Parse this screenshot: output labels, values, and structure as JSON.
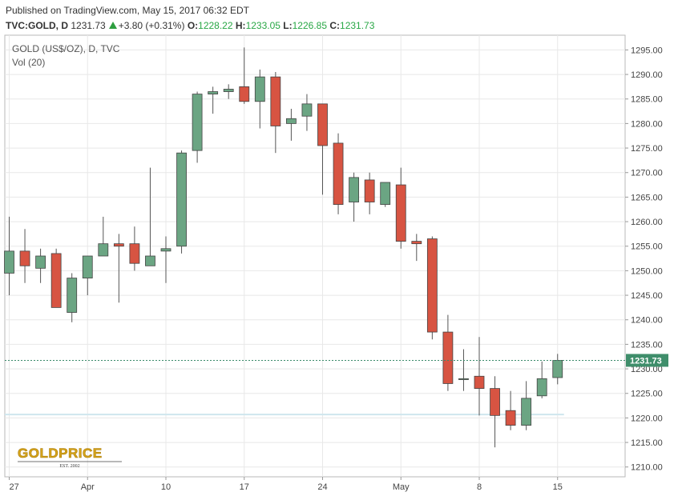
{
  "header": {
    "published": "Published on TradingView.com, May 15, 2017 06:32 EDT",
    "symbol": "TVC:GOLD, D",
    "last": "1231.73",
    "change": "+3.80 (+0.31%)",
    "o_label": "O:",
    "o_value": "1228.22",
    "h_label": "H:",
    "h_value": "1233.05",
    "l_label": "L:",
    "l_value": "1226.85",
    "c_label": "C:",
    "c_value": "1231.73"
  },
  "colors": {
    "up": "#6ba583",
    "down": "#d75442",
    "wick": "#555555",
    "grid": "#e8e8e8",
    "price_line": "#3a8a6a",
    "price_badge": "#3f8e6b",
    "accent_green": "#28a745"
  },
  "chart_data": {
    "type": "candlestick",
    "title": "GOLD (US$/OZ), D, TVC",
    "subtitle": "Vol (20)",
    "ylim": [
      1208,
      1298
    ],
    "y_ticks": [
      1295,
      1290,
      1285,
      1280,
      1275,
      1270,
      1265,
      1260,
      1255,
      1250,
      1245,
      1240,
      1235,
      1230,
      1225,
      1220,
      1215,
      1210
    ],
    "y_tick_labels": [
      "1295.00",
      "1290.00",
      "1285.00",
      "1280.00",
      "1275.00",
      "1270.00",
      "1265.00",
      "1260.00",
      "1255.00",
      "1250.00",
      "1245.00",
      "1240.00",
      "1235.00",
      "1230.00",
      "1225.00",
      "1220.00",
      "1215.00",
      "1210.00"
    ],
    "x_labels": [
      "27",
      "Apr",
      "10",
      "17",
      "24",
      "May",
      "8",
      "15"
    ],
    "x_label_bar_index": [
      0,
      5,
      10,
      15,
      20,
      25,
      30,
      35
    ],
    "current_price": 1231.73,
    "current_price_label": "1231.73",
    "candles": [
      {
        "o": 1249.5,
        "h": 1261,
        "l": 1245,
        "c": 1254
      },
      {
        "o": 1254,
        "h": 1258.5,
        "l": 1247.5,
        "c": 1251
      },
      {
        "o": 1250.5,
        "h": 1254.5,
        "l": 1247.5,
        "c": 1253
      },
      {
        "o": 1253.5,
        "h": 1254.5,
        "l": 1242.5,
        "c": 1242.5
      },
      {
        "o": 1241.5,
        "h": 1249.5,
        "l": 1239.5,
        "c": 1248.5
      },
      {
        "o": 1248.5,
        "h": 1252.5,
        "l": 1245,
        "c": 1253
      },
      {
        "o": 1253,
        "h": 1261,
        "l": 1253,
        "c": 1255.5
      },
      {
        "o": 1255.5,
        "h": 1257.5,
        "l": 1243.5,
        "c": 1255
      },
      {
        "o": 1255.5,
        "h": 1259,
        "l": 1250,
        "c": 1251.5
      },
      {
        "o": 1251,
        "h": 1271,
        "l": 1251,
        "c": 1253
      },
      {
        "o": 1254,
        "h": 1257,
        "l": 1247.5,
        "c": 1254.5
      },
      {
        "o": 1255,
        "h": 1274.5,
        "l": 1253.5,
        "c": 1274
      },
      {
        "o": 1274.5,
        "h": 1286.5,
        "l": 1272,
        "c": 1286
      },
      {
        "o": 1286,
        "h": 1287.5,
        "l": 1282,
        "c": 1286.5
      },
      {
        "o": 1286.5,
        "h": 1288,
        "l": 1285,
        "c": 1287
      },
      {
        "o": 1287.5,
        "h": 1295.5,
        "l": 1284,
        "c": 1284.5
      },
      {
        "o": 1284.5,
        "h": 1291,
        "l": 1279,
        "c": 1289.5
      },
      {
        "o": 1289.5,
        "h": 1290.5,
        "l": 1274,
        "c": 1279.5
      },
      {
        "o": 1280,
        "h": 1283,
        "l": 1276.5,
        "c": 1281
      },
      {
        "o": 1281.5,
        "h": 1286,
        "l": 1278.5,
        "c": 1284
      },
      {
        "o": 1284,
        "h": 1284,
        "l": 1265.5,
        "c": 1275.5
      },
      {
        "o": 1276,
        "h": 1278,
        "l": 1261.5,
        "c": 1263.5
      },
      {
        "o": 1264,
        "h": 1270,
        "l": 1260,
        "c": 1269
      },
      {
        "o": 1268.5,
        "h": 1270,
        "l": 1261.5,
        "c": 1264
      },
      {
        "o": 1263.5,
        "h": 1268,
        "l": 1263,
        "c": 1268
      },
      {
        "o": 1267.5,
        "h": 1271,
        "l": 1254.5,
        "c": 1256
      },
      {
        "o": 1256,
        "h": 1257.5,
        "l": 1252,
        "c": 1255.5
      },
      {
        "o": 1256.5,
        "h": 1257,
        "l": 1236,
        "c": 1237.5
      },
      {
        "o": 1237.5,
        "h": 1241,
        "l": 1225.5,
        "c": 1227
      },
      {
        "o": 1228,
        "h": 1234,
        "l": 1225.5,
        "c": 1228
      },
      {
        "o": 1228.5,
        "h": 1236.5,
        "l": 1220.5,
        "c": 1226
      },
      {
        "o": 1226,
        "h": 1228.5,
        "l": 1214,
        "c": 1220.5
      },
      {
        "o": 1221.5,
        "h": 1225.5,
        "l": 1217.5,
        "c": 1218.5
      },
      {
        "o": 1218.5,
        "h": 1227.5,
        "l": 1217.5,
        "c": 1224
      },
      {
        "o": 1224.5,
        "h": 1231.5,
        "l": 1224,
        "c": 1228
      },
      {
        "o": 1228.22,
        "h": 1233.05,
        "l": 1226.85,
        "c": 1231.73
      }
    ]
  },
  "logo": {
    "text": "GOLDPRICE",
    "tagline": "EST. 2002"
  }
}
